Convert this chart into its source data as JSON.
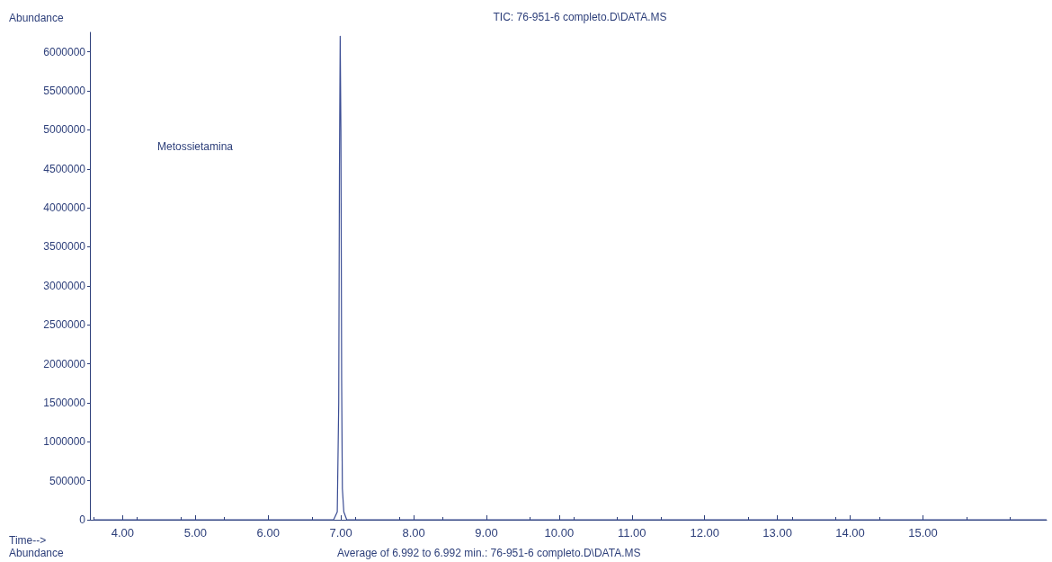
{
  "chart_data": {
    "type": "line",
    "title": "TIC: 76-951-6 completo.D\\DATA.MS",
    "xlabel": "Time-->",
    "ylabel": "Abundance",
    "annotations": [
      "Metossietamina",
      "Average of 6.992 to 6.992 min.: 76-951-6 completo.D\\DATA.MS",
      "Abundance"
    ],
    "x": [
      3.6,
      4.0,
      4.5,
      5.0,
      5.5,
      6.0,
      6.5,
      6.8,
      6.9,
      6.95,
      6.97,
      6.98,
      6.99,
      7.0,
      7.01,
      7.02,
      7.04,
      7.08,
      7.2,
      8.0,
      9.0,
      10.0,
      11.0,
      12.0,
      13.0,
      14.0,
      15.0,
      16.0,
      16.7
    ],
    "series": [
      {
        "color": "#3b4d94",
        "values": [
          0,
          0,
          0,
          0,
          0,
          0,
          0,
          0,
          0,
          100000,
          1500000,
          4500000,
          6200000,
          5000000,
          1800000,
          400000,
          100000,
          0,
          0,
          0,
          0,
          0,
          0,
          0,
          0,
          0,
          0,
          0,
          0
        ]
      }
    ],
    "xlim": [
      3.55,
      16.7
    ],
    "xticks": [
      {
        "value": 4,
        "label": "4.00"
      },
      {
        "value": 5,
        "label": "5.00"
      },
      {
        "value": 6,
        "label": "6.00"
      },
      {
        "value": 7,
        "label": "7.00"
      },
      {
        "value": 8,
        "label": "8.00"
      },
      {
        "value": 9,
        "label": "9.00"
      },
      {
        "value": 10,
        "label": "10.00"
      },
      {
        "value": 11,
        "label": "11.00"
      },
      {
        "value": 12,
        "label": "12.00"
      },
      {
        "value": 13,
        "label": "13.00"
      },
      {
        "value": 14,
        "label": "14.00"
      },
      {
        "value": 15,
        "label": "15.00"
      }
    ],
    "ylim": [
      0,
      6250000
    ],
    "yticks": [
      0,
      500000,
      1000000,
      1500000,
      2000000,
      2500000,
      3000000,
      3500000,
      4000000,
      4500000,
      5000000,
      5500000,
      6000000
    ],
    "grid": false,
    "marker": "none",
    "line_style": "solid"
  }
}
